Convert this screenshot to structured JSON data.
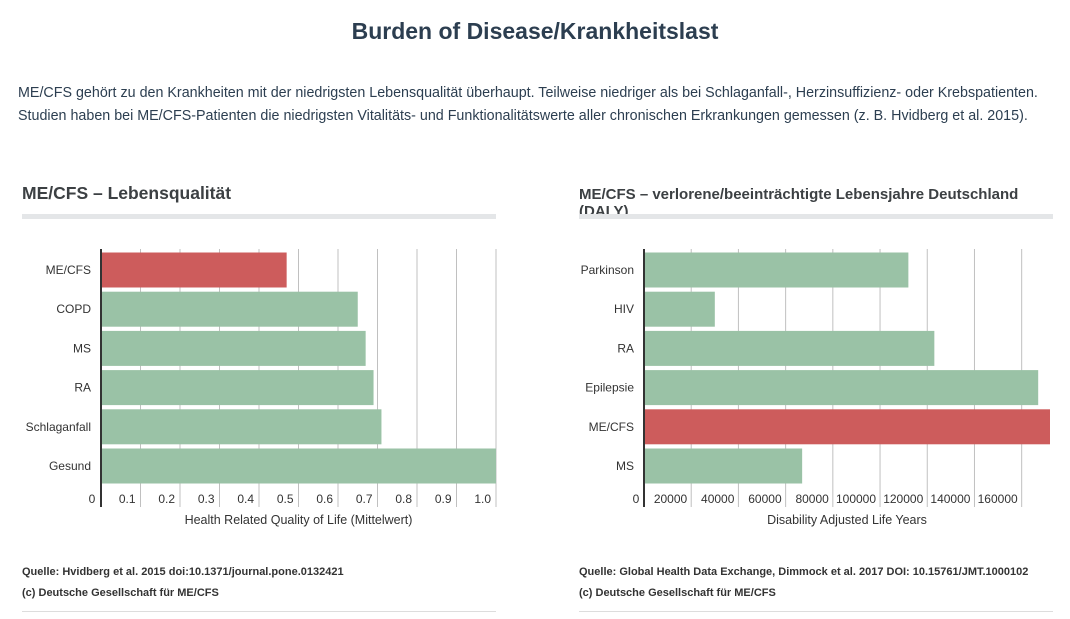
{
  "page": {
    "title": "Burden of Disease/Krankheitslast",
    "intro_line1": "ME/CFS gehört zu den Krankheiten mit der niedrigsten Lebensqualität überhaupt. Teilweise niedriger als bei Schlaganfall-, Herzinsuffizienz- oder Krebspatienten.",
    "intro_line2": "Studien haben bei ME/CFS-Patienten die niedrigsten Vitalitäts- und Funktionalitätswerte aller chronischen Erkrankungen gemessen (z. B. Hvidberg et al. 2015)."
  },
  "colors": {
    "highlight": "#cd5c5c",
    "normal": "#9ac2a6",
    "grid": "#c0c0c0",
    "axis": "#333333"
  },
  "left_panel": {
    "source": "Quelle: Hvidberg et al. 2015 doi:10.1371/journal.pone.0132421",
    "copyright": "(c) Deutsche Gesellschaft für ME/CFS"
  },
  "right_panel": {
    "source": "Quelle: Global Health Data Exchange, Dimmock et al. 2017 DOI: 10.15761/JMT.1000102",
    "copyright": "(c) Deutsche Gesellschaft für ME/CFS"
  },
  "chart_data": [
    {
      "type": "bar",
      "orientation": "horizontal",
      "title": "ME/CFS – Lebensqualität",
      "categories": [
        "ME/CFS",
        "COPD",
        "MS",
        "RA",
        "Schlaganfall",
        "Gesund"
      ],
      "values": [
        0.47,
        0.65,
        0.67,
        0.69,
        0.71,
        1.0
      ],
      "highlight": "ME/CFS",
      "xlabel": "Health Related Quality of Life (Mittelwert)",
      "ylabel": "",
      "xlim": [
        0,
        1.0
      ],
      "ticks": [
        0,
        0.1,
        0.2,
        0.3,
        0.4,
        0.5,
        0.6,
        0.7,
        0.8,
        0.9,
        1.0
      ],
      "tick_labels": [
        "0",
        "0.1",
        "0.2",
        "0.3",
        "0.4",
        "0.5",
        "0.6",
        "0.7",
        "0.8",
        "0.9",
        "1.0"
      ],
      "grid": true
    },
    {
      "type": "bar",
      "orientation": "horizontal",
      "title": "ME/CFS – verlorene/beeinträchtigte Lebensjahre Deutschland (DALY)",
      "categories": [
        "Parkinson",
        "HIV",
        "RA",
        "Epilepsie",
        "ME/CFS",
        "MS"
      ],
      "values": [
        112000,
        30000,
        123000,
        167000,
        172000,
        67000
      ],
      "highlight": "ME/CFS",
      "xlabel": "Disability Adjusted Life Years",
      "ylabel": "",
      "xlim": [
        0,
        172000
      ],
      "ticks": [
        0,
        20000,
        40000,
        60000,
        80000,
        100000,
        120000,
        140000,
        160000
      ],
      "tick_labels": [
        "0",
        "20000",
        "40000",
        "60000",
        "80000",
        "100000",
        "120000",
        "140000",
        "160000"
      ],
      "grid": true
    }
  ]
}
